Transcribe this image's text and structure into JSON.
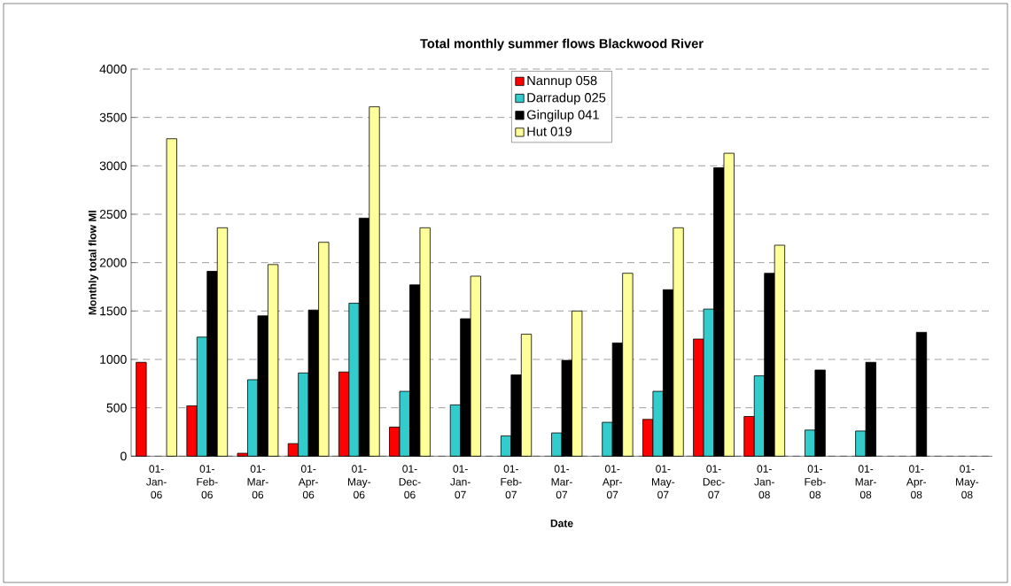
{
  "chart_data": {
    "type": "bar",
    "title": "Total monthly summer flows Blackwood River",
    "xlabel": "Date",
    "ylabel": "Monthly total flow Ml",
    "categories": [
      "01-Jan-06",
      "01-Feb-06",
      "01-Mar-06",
      "01-Apr-06",
      "01-May-06",
      "01-Dec-06",
      "01-Jan-07",
      "01-Feb-07",
      "01-Mar-07",
      "01-Apr-07",
      "01-May-07",
      "01-Dec-07",
      "01-Jan-08",
      "01-Feb-08",
      "01-Mar-08",
      "01-Apr-08",
      "01-May-08"
    ],
    "series": [
      {
        "name": "Nannup 058",
        "color": "#ff0000",
        "values": [
          970,
          520,
          30,
          130,
          870,
          300,
          null,
          null,
          null,
          null,
          380,
          1210,
          410,
          null,
          null,
          null,
          null
        ]
      },
      {
        "name": "Darradup 025",
        "color": "#33cccc",
        "values": [
          null,
          1230,
          790,
          860,
          1580,
          670,
          530,
          210,
          240,
          350,
          670,
          1520,
          830,
          270,
          260,
          null,
          null
        ]
      },
      {
        "name": "Gingilup 041",
        "color": "#000000",
        "values": [
          null,
          1910,
          1450,
          1510,
          2460,
          1770,
          1420,
          840,
          990,
          1170,
          1720,
          2980,
          1890,
          890,
          970,
          1280,
          null
        ]
      },
      {
        "name": "Hut 019",
        "color": "#ffff99",
        "values": [
          3280,
          2360,
          1980,
          2210,
          3610,
          2360,
          1860,
          1260,
          1500,
          1890,
          2360,
          3130,
          2180,
          null,
          null,
          null,
          null
        ]
      }
    ],
    "ylim": [
      0,
      4000
    ],
    "yticks": [
      0,
      500,
      1000,
      1500,
      2000,
      2500,
      3000,
      3500,
      4000
    ],
    "grid": "y",
    "legend": "top"
  }
}
